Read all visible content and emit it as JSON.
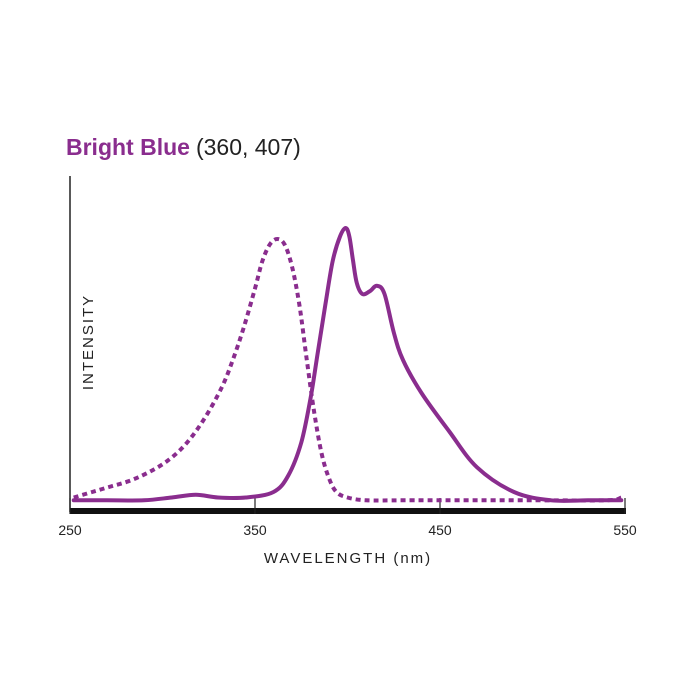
{
  "chart_data": {
    "type": "line",
    "title": "Bright Blue",
    "subtitle": "(360, 407)",
    "xlabel": "WAVELENGTH (nm)",
    "ylabel": "INTENSITY",
    "xlim": [
      250,
      550
    ],
    "ylim": [
      0,
      1
    ],
    "xticks": [
      250,
      350,
      450,
      550
    ],
    "xtick_labels": [
      "250",
      "350",
      "450",
      "550"
    ],
    "grid": false,
    "legend": "none",
    "series": [
      {
        "style": "dashed",
        "color": "#8a2d8e",
        "x": [
          252,
          262,
          272,
          282,
          292,
          302,
          312,
          322,
          332,
          338,
          344,
          350,
          354,
          358,
          362,
          366,
          370,
          374,
          378,
          382,
          386,
          390,
          394,
          400,
          410,
          430,
          460,
          500,
          540,
          548
        ],
        "y": [
          0.02,
          0.04,
          0.06,
          0.08,
          0.11,
          0.15,
          0.21,
          0.3,
          0.42,
          0.52,
          0.64,
          0.78,
          0.88,
          0.94,
          0.96,
          0.94,
          0.86,
          0.72,
          0.52,
          0.33,
          0.18,
          0.09,
          0.04,
          0.02,
          0.01,
          0.01,
          0.01,
          0.01,
          0.01,
          0.02
        ]
      },
      {
        "style": "solid",
        "color": "#8a2d8e",
        "x": [
          252,
          270,
          290,
          305,
          318,
          330,
          345,
          360,
          368,
          375,
          380,
          384,
          388,
          392,
          396,
          399,
          401,
          403,
          405,
          408,
          412,
          416,
          420,
          425,
          430,
          440,
          455,
          470,
          490,
          510,
          530,
          548
        ],
        "y": [
          0.01,
          0.01,
          0.01,
          0.02,
          0.03,
          0.02,
          0.02,
          0.04,
          0.1,
          0.22,
          0.38,
          0.55,
          0.72,
          0.88,
          0.97,
          1.0,
          0.97,
          0.88,
          0.8,
          0.76,
          0.77,
          0.79,
          0.76,
          0.62,
          0.52,
          0.4,
          0.26,
          0.13,
          0.04,
          0.01,
          0.01,
          0.01
        ]
      }
    ]
  }
}
